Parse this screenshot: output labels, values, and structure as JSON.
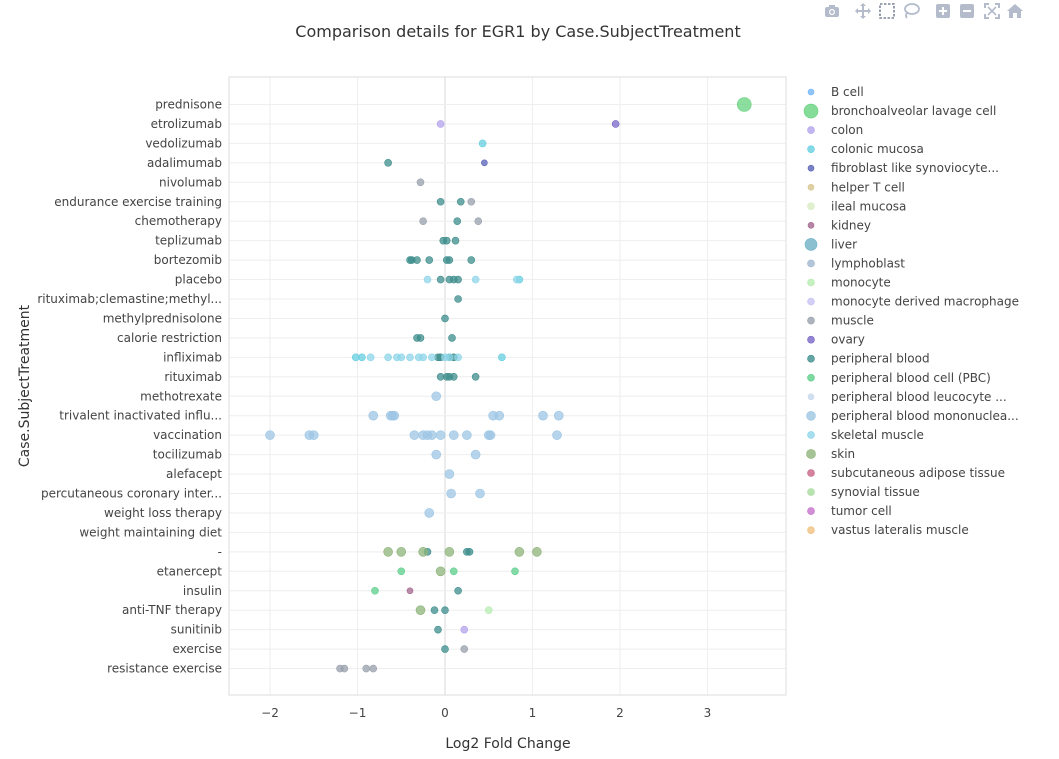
{
  "modebar": {
    "buttons": [
      {
        "name": "camera-icon"
      },
      {
        "name": "pan-icon"
      },
      {
        "name": "box-select-icon"
      },
      {
        "name": "lasso-select-icon"
      },
      {
        "name": "zoom-in-icon"
      },
      {
        "name": "zoom-out-icon"
      },
      {
        "name": "autoscale-icon"
      },
      {
        "name": "reset-axes-icon"
      }
    ]
  },
  "chart_data": {
    "type": "scatter",
    "title": "Comparison details for EGR1 by Case.SubjectTreatment",
    "xlabel": "Log2 Fold Change",
    "ylabel": "Case.SubjectTreatment",
    "xlim": [
      -2.5,
      3.8
    ],
    "xticks": [
      -2,
      -1,
      0,
      1,
      2,
      3
    ],
    "xtick_labels": [
      "−2",
      "−1",
      "0",
      "1",
      "2",
      "3"
    ],
    "grid": true,
    "legend_position": "right",
    "categories": [
      "prednisone",
      "etrolizumab",
      "vedolizumab",
      "adalimumab",
      "nivolumab",
      "endurance exercise training",
      "chemotherapy",
      "teplizumab",
      "bortezomib",
      "placebo",
      "rituximab;clemastine;methyl...",
      "methylprednisolone",
      "calorie restriction",
      "infliximab",
      "rituximab",
      "methotrexate",
      "trivalent inactivated influ...",
      "vaccination",
      "tocilizumab",
      "alefacept",
      "percutaneous coronary inter...",
      "weight loss therapy",
      "weight maintaining diet",
      "-",
      "etanercept",
      "insulin",
      "anti-TNF therapy",
      "sunitinib",
      "exercise",
      "resistance exercise"
    ],
    "series": [
      {
        "name": "B cell",
        "color": "#74b6f6",
        "size": 3,
        "points": []
      },
      {
        "name": "bronchoalveolar lavage cell",
        "color": "#66d37e",
        "size": 7,
        "points": [
          [
            3.42,
            "prednisone"
          ]
        ]
      },
      {
        "name": "colon",
        "color": "#b3a3ec",
        "size": 3.5,
        "points": [
          [
            -0.05,
            "etrolizumab"
          ],
          [
            0.22,
            "sunitinib"
          ]
        ]
      },
      {
        "name": "colonic mucosa",
        "color": "#66cfe0",
        "size": 3.5,
        "points": [
          [
            0.43,
            "vedolizumab"
          ],
          [
            0.85,
            "placebo"
          ],
          [
            -0.95,
            "infliximab"
          ],
          [
            -1.02,
            "infliximab"
          ],
          [
            0.65,
            "infliximab"
          ]
        ]
      },
      {
        "name": "fibroblast like synoviocyte...",
        "color": "#5863b8",
        "size": 3,
        "points": [
          [
            0.45,
            "adalimumab"
          ]
        ]
      },
      {
        "name": "helper T cell",
        "color": "#d8c48e",
        "size": 3,
        "points": []
      },
      {
        "name": "ileal mucosa",
        "color": "#d8ecc2",
        "size": 3.5,
        "points": []
      },
      {
        "name": "kidney",
        "color": "#a4668e",
        "size": 3,
        "points": [
          [
            -0.4,
            "insulin"
          ]
        ]
      },
      {
        "name": "liver",
        "color": "#6eb0c6",
        "size": 6,
        "points": []
      },
      {
        "name": "lymphoblast",
        "color": "#a0b6ce",
        "size": 3.5,
        "points": []
      },
      {
        "name": "monocyte",
        "color": "#b6ecb0",
        "size": 3.5,
        "points": [
          [
            0.5,
            "anti-TNF therapy"
          ]
        ]
      },
      {
        "name": "monocyte derived macrophage",
        "color": "#c8c2f4",
        "size": 3.5,
        "points": []
      },
      {
        "name": "muscle",
        "color": "#98a0ac",
        "size": 3.5,
        "points": [
          [
            -0.28,
            "nivolumab"
          ],
          [
            -0.25,
            "chemotherapy"
          ],
          [
            0.38,
            "chemotherapy"
          ],
          [
            0.3,
            "endurance exercise training"
          ],
          [
            -1.15,
            "resistance exercise"
          ],
          [
            -1.2,
            "resistance exercise"
          ],
          [
            -0.9,
            "resistance exercise"
          ],
          [
            -0.82,
            "resistance exercise"
          ],
          [
            0.22,
            "exercise"
          ]
        ]
      },
      {
        "name": "ovary",
        "color": "#7a68c8",
        "size": 3.5,
        "points": [
          [
            1.95,
            "etrolizumab"
          ]
        ]
      },
      {
        "name": "peripheral blood",
        "color": "#3e8e8c",
        "size": 3.5,
        "points": [
          [
            -0.65,
            "adalimumab"
          ],
          [
            -0.05,
            "endurance exercise training"
          ],
          [
            0.18,
            "endurance exercise training"
          ],
          [
            0.14,
            "chemotherapy"
          ],
          [
            -0.02,
            "teplizumab"
          ],
          [
            0.02,
            "teplizumab"
          ],
          [
            0.12,
            "teplizumab"
          ],
          [
            -0.4,
            "bortezomib"
          ],
          [
            -0.38,
            "bortezomib"
          ],
          [
            -0.32,
            "bortezomib"
          ],
          [
            -0.18,
            "bortezomib"
          ],
          [
            0.02,
            "bortezomib"
          ],
          [
            0.05,
            "bortezomib"
          ],
          [
            0.3,
            "bortezomib"
          ],
          [
            -0.05,
            "placebo"
          ],
          [
            0.05,
            "placebo"
          ],
          [
            0.1,
            "placebo"
          ],
          [
            0.15,
            "placebo"
          ],
          [
            0.15,
            "rituximab;clemastine;methyl..."
          ],
          [
            0.0,
            "methylprednisolone"
          ],
          [
            -0.32,
            "calorie restriction"
          ],
          [
            -0.28,
            "calorie restriction"
          ],
          [
            0.08,
            "calorie restriction"
          ],
          [
            -0.05,
            "infliximab"
          ],
          [
            -0.08,
            "infliximab"
          ],
          [
            0.05,
            "infliximab"
          ],
          [
            0.1,
            "infliximab"
          ],
          [
            -0.05,
            "rituximab"
          ],
          [
            0.02,
            "rituximab"
          ],
          [
            0.05,
            "rituximab"
          ],
          [
            0.1,
            "rituximab"
          ],
          [
            0.35,
            "rituximab"
          ],
          [
            0.25,
            "-"
          ],
          [
            0.28,
            "-"
          ],
          [
            -0.2,
            "-"
          ],
          [
            -0.12,
            "anti-TNF therapy"
          ],
          [
            0.0,
            "anti-TNF therapy"
          ],
          [
            0.15,
            "insulin"
          ],
          [
            -0.08,
            "sunitinib"
          ],
          [
            0.0,
            "exercise"
          ]
        ]
      },
      {
        "name": "peripheral blood cell (PBC)",
        "color": "#5ccf8a",
        "size": 3.5,
        "points": [
          [
            -0.8,
            "insulin"
          ],
          [
            0.8,
            "etanercept"
          ],
          [
            -0.5,
            "etanercept"
          ],
          [
            0.1,
            "etanercept"
          ]
        ]
      },
      {
        "name": "peripheral blood leucocyte ...",
        "color": "#c6d8ec",
        "size": 3,
        "points": []
      },
      {
        "name": "peripheral blood mononuclea...",
        "color": "#9ec6e4",
        "size": 4.5,
        "points": [
          [
            -2.0,
            "vaccination"
          ],
          [
            -1.55,
            "vaccination"
          ],
          [
            -1.5,
            "vaccination"
          ],
          [
            1.28,
            "vaccination"
          ],
          [
            0.5,
            "vaccination"
          ],
          [
            0.52,
            "vaccination"
          ],
          [
            -0.35,
            "vaccination"
          ],
          [
            -0.25,
            "vaccination"
          ],
          [
            -0.2,
            "vaccination"
          ],
          [
            -0.15,
            "vaccination"
          ],
          [
            -0.05,
            "vaccination"
          ],
          [
            0.1,
            "vaccination"
          ],
          [
            0.25,
            "vaccination"
          ],
          [
            1.3,
            "trivalent inactivated influ..."
          ],
          [
            1.12,
            "trivalent inactivated influ..."
          ],
          [
            0.62,
            "trivalent inactivated influ..."
          ],
          [
            0.55,
            "trivalent inactivated influ..."
          ],
          [
            -0.6,
            "trivalent inactivated influ..."
          ],
          [
            -0.62,
            "trivalent inactivated influ..."
          ],
          [
            -0.58,
            "trivalent inactivated influ..."
          ],
          [
            -0.82,
            "trivalent inactivated influ..."
          ],
          [
            -0.1,
            "tocilizumab"
          ],
          [
            0.35,
            "tocilizumab"
          ],
          [
            0.05,
            "alefacept"
          ],
          [
            0.4,
            "percutaneous coronary inter..."
          ],
          [
            -0.18,
            "weight loss therapy"
          ],
          [
            -0.1,
            "methotrexate"
          ],
          [
            0.07,
            "percutaneous coronary inter..."
          ]
        ]
      },
      {
        "name": "skeletal muscle",
        "color": "#8ed6ea",
        "size": 3.5,
        "points": [
          [
            0.82,
            "placebo"
          ],
          [
            0.35,
            "placebo"
          ],
          [
            -0.2,
            "placebo"
          ],
          [
            -0.85,
            "infliximab"
          ],
          [
            -0.65,
            "infliximab"
          ],
          [
            -0.55,
            "infliximab"
          ],
          [
            -0.5,
            "infliximab"
          ],
          [
            -0.4,
            "infliximab"
          ],
          [
            -0.3,
            "infliximab"
          ],
          [
            -0.25,
            "infliximab"
          ],
          [
            -0.15,
            "infliximab"
          ],
          [
            0.0,
            "infliximab"
          ],
          [
            0.05,
            "infliximab"
          ],
          [
            0.15,
            "infliximab"
          ]
        ]
      },
      {
        "name": "skin",
        "color": "#8eb47a",
        "size": 4.5,
        "points": [
          [
            1.05,
            "-"
          ],
          [
            0.85,
            "-"
          ],
          [
            0.05,
            "-"
          ],
          [
            -0.25,
            "-"
          ],
          [
            -0.5,
            "-"
          ],
          [
            -0.65,
            "-"
          ],
          [
            -0.05,
            "etanercept"
          ],
          [
            -0.28,
            "anti-TNF therapy"
          ]
        ]
      },
      {
        "name": "subcutaneous adipose tissue",
        "color": "#c86486",
        "size": 3.5,
        "points": []
      },
      {
        "name": "synovial tissue",
        "color": "#a6dc9e",
        "size": 3.5,
        "points": []
      },
      {
        "name": "tumor cell",
        "color": "#c672cc",
        "size": 3.5,
        "points": []
      },
      {
        "name": "vastus lateralis muscle",
        "color": "#f0c07e",
        "size": 3.5,
        "points": []
      }
    ]
  }
}
